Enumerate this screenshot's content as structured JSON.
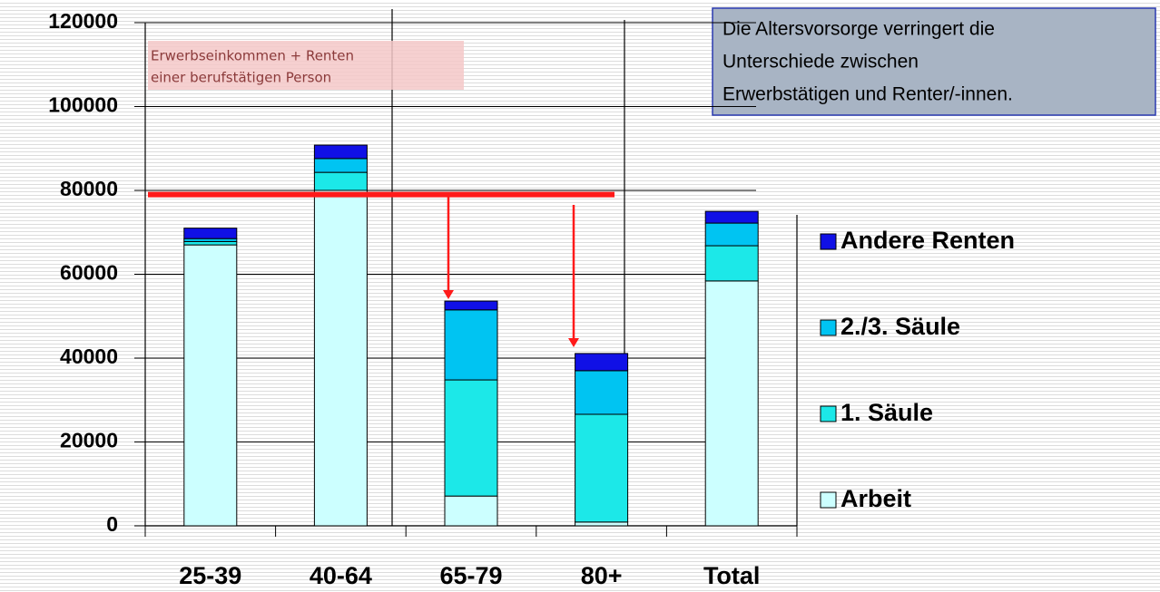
{
  "chart_data": {
    "type": "stacked_bar",
    "categories": [
      "25-39",
      "40-64",
      "65-79",
      "80+",
      "Total"
    ],
    "series": [
      {
        "name": "Arbeit",
        "color": "#ccffff",
        "values": [
          67000,
          80000,
          7100,
          900,
          58400
        ]
      },
      {
        "name": "1. Säule",
        "color": "#1ce8e8",
        "values": [
          800,
          4300,
          27700,
          25700,
          8400
        ]
      },
      {
        "name": "2./3. Säule",
        "color": "#00c4f2",
        "values": [
          700,
          3300,
          16700,
          10400,
          5400
        ]
      },
      {
        "name": "Andere Renten",
        "color": "#1010e6",
        "values": [
          2500,
          3200,
          2100,
          4100,
          2800
        ]
      }
    ],
    "ylim": [
      0,
      120000
    ],
    "yticks": [
      0,
      20000,
      40000,
      60000,
      80000,
      100000,
      120000
    ],
    "grid": true,
    "reference_line": 79000,
    "reference_color": "#ff1a1a",
    "annotations": [
      {
        "lines": [
          "Erwerbseinkommen + Renten",
          "einer berufstätigen Person"
        ]
      },
      {
        "lines": [
          "Die Altersvorsorge verringert die",
          "Unterschiede zwischen",
          "Erwerbstätigen und Renter/-innen."
        ]
      }
    ]
  }
}
